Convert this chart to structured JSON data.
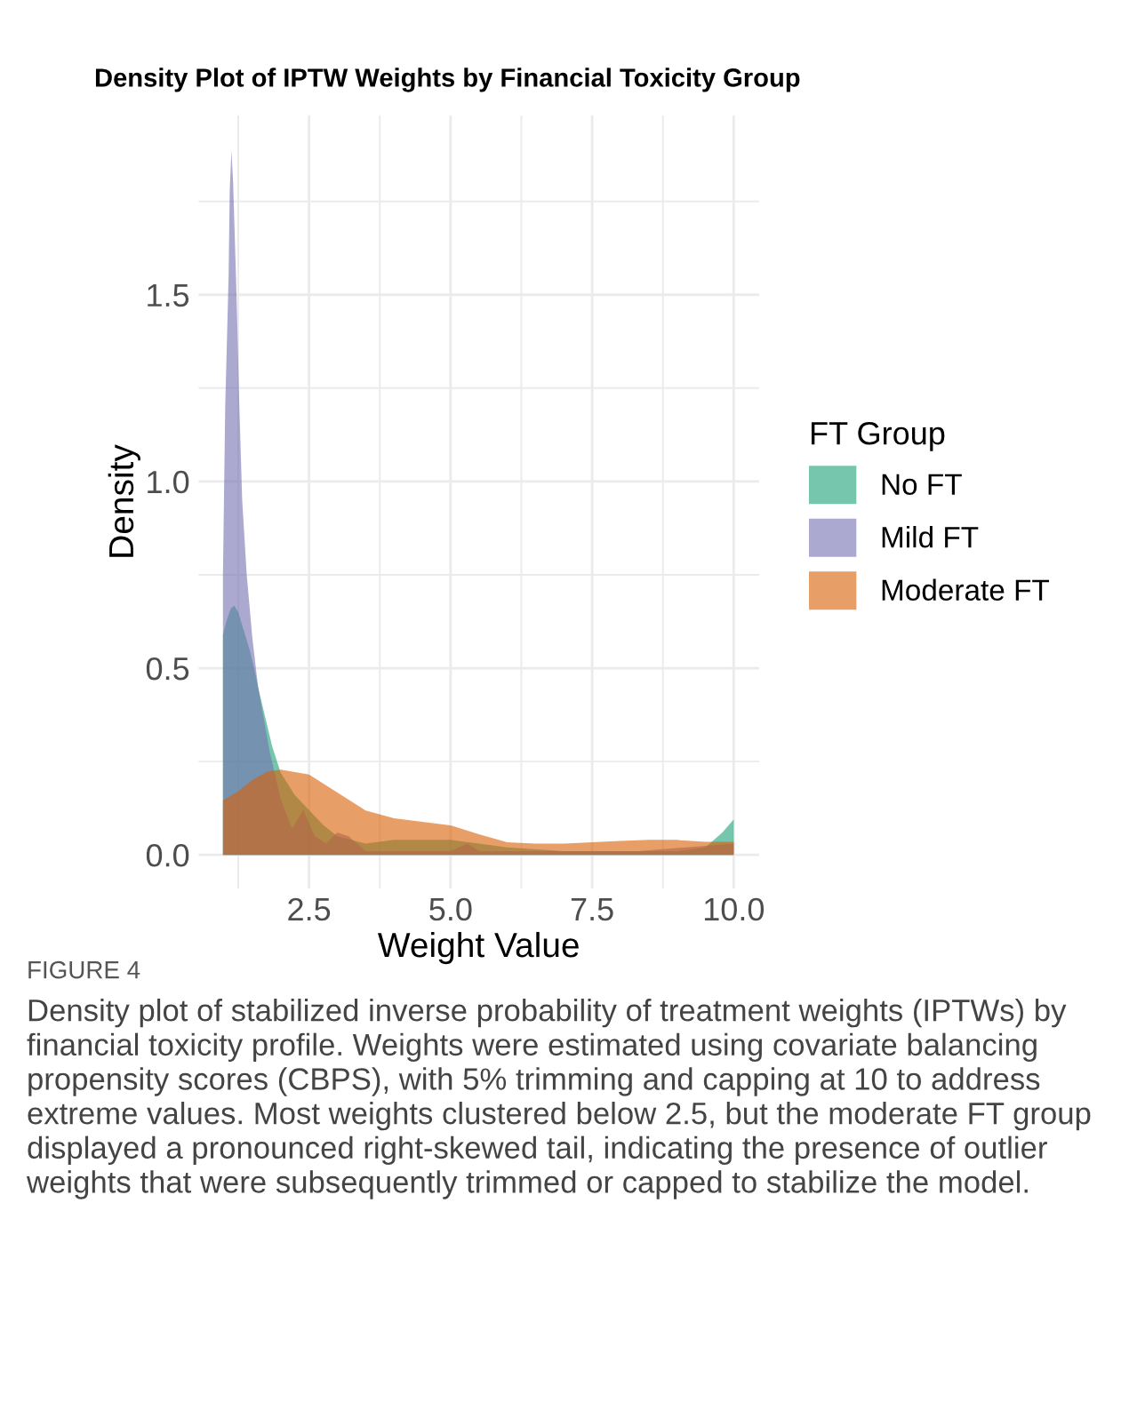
{
  "chart_data": {
    "type": "area",
    "title": "Density Plot of IPTW Weights by Financial Toxicity Group",
    "xlabel": "Weight Value",
    "ylabel": "Density",
    "legend_title": "FT Group",
    "series": [
      {
        "name": "No FT",
        "color": "#1b9e77",
        "x": [
          0.98,
          1.05,
          1.12,
          1.18,
          1.25,
          1.35,
          1.45,
          1.53,
          1.63,
          1.74,
          1.85,
          2.0,
          2.25,
          2.5,
          2.75,
          3.0,
          3.5,
          4.0,
          4.5,
          5.0,
          5.5,
          6.0,
          7.0,
          8.0,
          9.0,
          9.5,
          9.8,
          10.0
        ],
        "values": [
          0.59,
          0.63,
          0.66,
          0.667,
          0.65,
          0.6,
          0.55,
          0.5,
          0.43,
          0.36,
          0.29,
          0.22,
          0.16,
          0.12,
          0.08,
          0.05,
          0.03,
          0.04,
          0.04,
          0.04,
          0.03,
          0.02,
          0.01,
          0.01,
          0.01,
          0.02,
          0.06,
          0.095
        ]
      },
      {
        "name": "Mild FT",
        "color": "#7570b3",
        "x": [
          0.98,
          1.02,
          1.08,
          1.1,
          1.13,
          1.16,
          1.18,
          1.22,
          1.27,
          1.32,
          1.4,
          1.5,
          1.6,
          1.8,
          2.0,
          2.2,
          2.4,
          2.6,
          2.8,
          3.0,
          3.2,
          3.5,
          4.0,
          5.0,
          5.3,
          5.5,
          7.0,
          8.3,
          10.0
        ],
        "values": [
          0.75,
          1.2,
          1.55,
          1.78,
          1.886,
          1.8,
          1.7,
          1.5,
          1.2,
          0.95,
          0.75,
          0.58,
          0.45,
          0.28,
          0.15,
          0.07,
          0.12,
          0.05,
          0.03,
          0.06,
          0.05,
          0.01,
          0.01,
          0.01,
          0.03,
          0.01,
          0.01,
          0.01,
          0.03
        ]
      },
      {
        "name": "Moderate FT",
        "color": "#d95f02",
        "x": [
          0.98,
          1.25,
          1.5,
          1.75,
          2.0,
          2.5,
          3.0,
          3.5,
          4.0,
          5.0,
          5.5,
          6.0,
          6.5,
          7.0,
          7.5,
          8.0,
          8.5,
          9.0,
          9.5,
          10.0
        ],
        "values": [
          0.146,
          0.17,
          0.2,
          0.222,
          0.228,
          0.215,
          0.167,
          0.119,
          0.098,
          0.079,
          0.055,
          0.034,
          0.03,
          0.03,
          0.034,
          0.037,
          0.04,
          0.04,
          0.035,
          0.035
        ]
      }
    ],
    "xlim": [
      0.55,
      10.45
    ],
    "xticks": [
      2.5,
      {
        "value": 5,
        "label": "5.0"
      },
      7.5,
      {
        "value": 10,
        "label": "10.0"
      }
    ],
    "ylim": [
      -0.09,
      1.98
    ],
    "yticks": [
      {
        "value": 0,
        "label": "0.0"
      },
      0.5,
      {
        "value": 1,
        "label": "1.0"
      },
      1.5
    ],
    "grid": true,
    "legend": "right",
    "annotations": [
      "FIGURE 4",
      "Density plot of stabilized inverse probability of treatment weights (IPTWs) by financial toxicity profile. Weights were estimated using covariate balancing propensity scores (CBPS), with 5% trimming and capping at 10 to address extreme values. Most weights clustered below 2.5, but the moderate FT group displayed a pronounced right-skewed tail, indicating the presence of outlier weights that were subsequently trimmed or capped to stabilize the model."
    ]
  }
}
